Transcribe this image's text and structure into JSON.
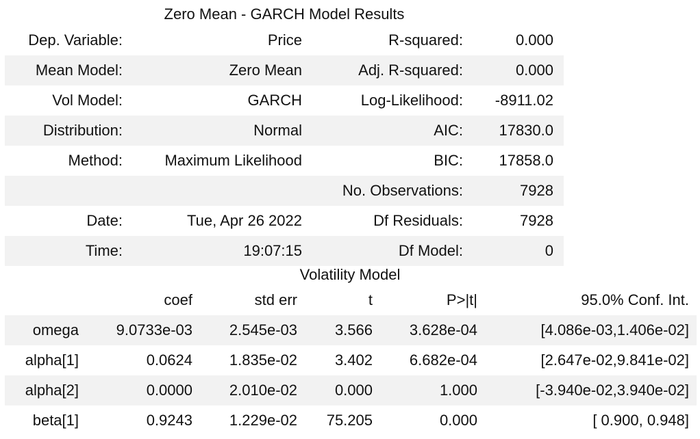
{
  "summary": {
    "caption": "Zero Mean - GARCH Model Results",
    "rows": [
      {
        "l1": "Dep. Variable:",
        "v1": "Price",
        "l2": "R-squared:",
        "v2": "0.000"
      },
      {
        "l1": "Mean Model:",
        "v1": "Zero Mean",
        "l2": "Adj. R-squared:",
        "v2": "0.000"
      },
      {
        "l1": "Vol Model:",
        "v1": "GARCH",
        "l2": "Log-Likelihood:",
        "v2": "-8911.02"
      },
      {
        "l1": "Distribution:",
        "v1": "Normal",
        "l2": "AIC:",
        "v2": "17830.0"
      },
      {
        "l1": "Method:",
        "v1": "Maximum Likelihood",
        "l2": "BIC:",
        "v2": "17858.0"
      },
      {
        "l1": "",
        "v1": "",
        "l2": "No. Observations:",
        "v2": "7928"
      },
      {
        "l1": "Date:",
        "v1": "Tue, Apr 26 2022",
        "l2": "Df Residuals:",
        "v2": "7928"
      },
      {
        "l1": "Time:",
        "v1": "19:07:15",
        "l2": "Df Model:",
        "v2": "0"
      }
    ]
  },
  "volatility": {
    "caption": "Volatility Model",
    "headers": [
      "",
      "coef",
      "std err",
      "t",
      "P>|t|",
      "95.0% Conf. Int."
    ],
    "rows": [
      [
        "omega",
        "9.0733e-03",
        "2.545e-03",
        "3.566",
        "3.628e-04",
        "[4.086e-03,1.406e-02]"
      ],
      [
        "alpha[1]",
        "0.0624",
        "1.835e-02",
        "3.402",
        "6.682e-04",
        "[2.647e-02,9.841e-02]"
      ],
      [
        "alpha[2]",
        "0.0000",
        "2.010e-02",
        "0.000",
        "1.000",
        "[-3.940e-02,3.940e-02]"
      ],
      [
        "beta[1]",
        "0.9243",
        "1.229e-02",
        "75.205",
        "0.000",
        "[ 0.900, 0.948]"
      ]
    ]
  }
}
